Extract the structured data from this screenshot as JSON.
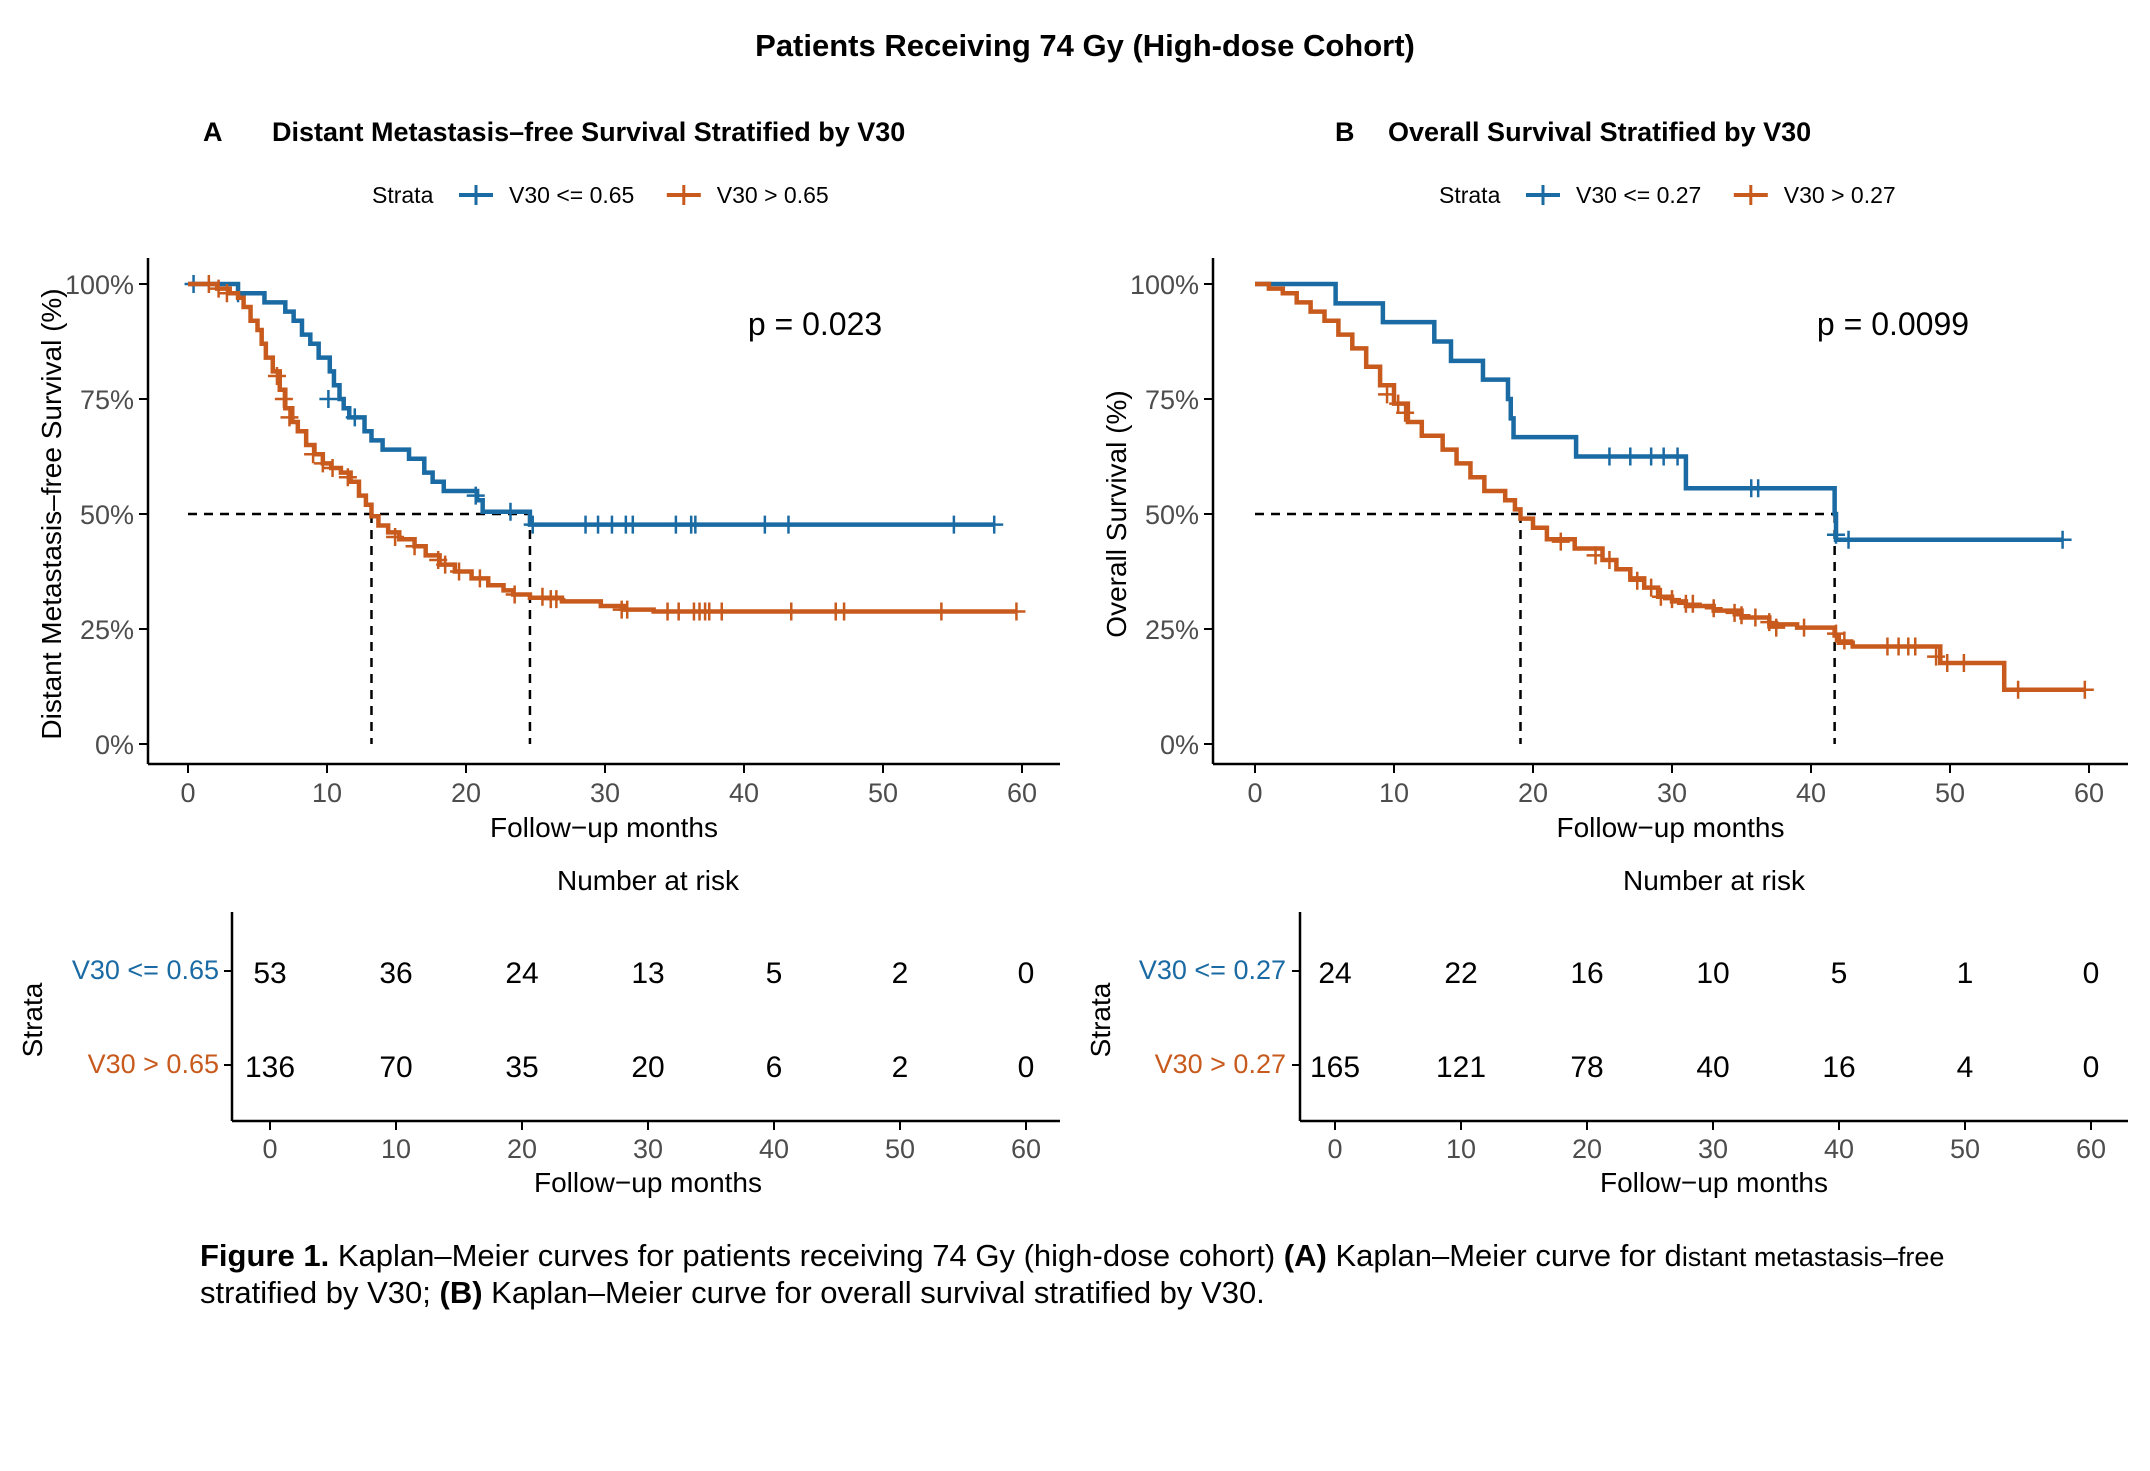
{
  "figure_title": "Patients Receiving 74 Gy (High-dose Cohort)",
  "colors": {
    "group1": "#1a6aa3",
    "group2": "#c75a1c",
    "axis": "#000000",
    "tick_label": "#4d4d4d"
  },
  "chart_data": [
    {
      "type": "line",
      "panel_letter": "A",
      "title": "Distant Metastasis–free Survival Stratified by V30",
      "legend_title": "Strata",
      "legend_position": "top",
      "xlabel": "Follow−up months",
      "ylabel": "Distant Metastasis–free Survival (%)",
      "xlim": [
        0,
        60
      ],
      "ylim": [
        0,
        100
      ],
      "x_ticks": [
        "0",
        "10",
        "20",
        "30",
        "40",
        "50",
        "60"
      ],
      "y_ticks": [
        "0%",
        "25%",
        "50%",
        "75%",
        "100%"
      ],
      "pvalue": "p = 0.023",
      "median_survival": [
        24.6,
        13.2
      ],
      "series": [
        {
          "name": "V30 <= 0.65",
          "step_points": [
            [
              0,
              100
            ],
            [
              3.6,
              98
            ],
            [
              5.5,
              96
            ],
            [
              7,
              94
            ],
            [
              7.6,
              92
            ],
            [
              8.2,
              89
            ],
            [
              8.8,
              87
            ],
            [
              9.4,
              84
            ],
            [
              10.2,
              81
            ],
            [
              10.5,
              78
            ],
            [
              10.9,
              75
            ],
            [
              11.2,
              73
            ],
            [
              11.6,
              71
            ],
            [
              12.7,
              68
            ],
            [
              13.2,
              66
            ],
            [
              14,
              64
            ],
            [
              15.9,
              62
            ],
            [
              17,
              59
            ],
            [
              17.6,
              57
            ],
            [
              18.4,
              55
            ],
            [
              20.8,
              53
            ],
            [
              21.2,
              50.5
            ],
            [
              24.6,
              47.7
            ],
            [
              58,
              47.7
            ]
          ],
          "censors": [
            [
              0.4,
              100
            ],
            [
              3.6,
              98
            ],
            [
              10.1,
              75
            ],
            [
              12,
              71
            ],
            [
              20.7,
              54
            ],
            [
              23.2,
              50.5
            ],
            [
              24.8,
              47.7
            ],
            [
              28.6,
              47.7
            ],
            [
              29.5,
              47.7
            ],
            [
              30.5,
              47.7
            ],
            [
              31.5,
              47.7
            ],
            [
              32.0,
              47.7
            ],
            [
              35.1,
              47.7
            ],
            [
              36.2,
              47.7
            ],
            [
              36.5,
              47.7
            ],
            [
              41.5,
              47.7
            ],
            [
              43.2,
              47.7
            ],
            [
              55.1,
              47.7
            ],
            [
              58,
              47.7
            ]
          ]
        },
        {
          "name": "V30 > 0.65",
          "step_points": [
            [
              0,
              100
            ],
            [
              2.1,
              99
            ],
            [
              3,
              98
            ],
            [
              3.6,
              97
            ],
            [
              4,
              95
            ],
            [
              4.5,
              92
            ],
            [
              5,
              90
            ],
            [
              5.3,
              87
            ],
            [
              5.6,
              84
            ],
            [
              6.1,
              81
            ],
            [
              6.6,
              77
            ],
            [
              7,
              73
            ],
            [
              7.5,
              70
            ],
            [
              7.9,
              68
            ],
            [
              8.5,
              65
            ],
            [
              9.1,
              63
            ],
            [
              9.7,
              61
            ],
            [
              10.3,
              60
            ],
            [
              11,
              59
            ],
            [
              11.7,
              57
            ],
            [
              12.3,
              54
            ],
            [
              12.8,
              52
            ],
            [
              13.2,
              49.5
            ],
            [
              13.7,
              47.5
            ],
            [
              14.4,
              46
            ],
            [
              15.2,
              44.5
            ],
            [
              16.3,
              43
            ],
            [
              17.1,
              41
            ],
            [
              18.1,
              39
            ],
            [
              19.2,
              37.5
            ],
            [
              20.4,
              36
            ],
            [
              21.6,
              34.5
            ],
            [
              22.7,
              33.4
            ],
            [
              23.4,
              32.5
            ],
            [
              24.6,
              31.8
            ],
            [
              26.9,
              31
            ],
            [
              29.7,
              30
            ],
            [
              31.4,
              29.2
            ],
            [
              33.5,
              28.8
            ],
            [
              59.6,
              28.8
            ]
          ],
          "censors": [
            [
              1.5,
              100
            ],
            [
              2.2,
              99
            ],
            [
              2.8,
              98
            ],
            [
              6.4,
              80
            ],
            [
              6.9,
              75
            ],
            [
              7.3,
              71
            ],
            [
              9,
              63
            ],
            [
              9.7,
              61
            ],
            [
              10.4,
              60
            ],
            [
              11.5,
              58
            ],
            [
              14.9,
              45
            ],
            [
              16.3,
              43
            ],
            [
              18,
              40
            ],
            [
              18.5,
              39
            ],
            [
              19.5,
              37.5
            ],
            [
              21,
              36
            ],
            [
              23.5,
              32.5
            ],
            [
              25.5,
              32
            ],
            [
              26.1,
              31.5
            ],
            [
              26.5,
              31.5
            ],
            [
              31.2,
              29.2
            ],
            [
              31.6,
              29.2
            ],
            [
              34.5,
              28.8
            ],
            [
              35.3,
              28.8
            ],
            [
              36.4,
              28.8
            ],
            [
              36.8,
              28.8
            ],
            [
              37.2,
              28.8
            ],
            [
              37.5,
              28.8
            ],
            [
              38.4,
              28.8
            ],
            [
              43.4,
              28.8
            ],
            [
              46.6,
              28.8
            ],
            [
              47.2,
              28.8
            ],
            [
              54.2,
              28.8
            ],
            [
              59.6,
              28.8
            ]
          ]
        }
      ],
      "risk_table": {
        "title": "Number at risk",
        "ylabel": "Strata",
        "xlabel": "Follow−up months",
        "times": [
          "0",
          "10",
          "20",
          "30",
          "40",
          "50",
          "60"
        ],
        "rows": [
          {
            "name": "V30 <= 0.65",
            "values": [
              "53",
              "36",
              "24",
              "13",
              "5",
              "2",
              "0"
            ]
          },
          {
            "name": "V30 > 0.65",
            "values": [
              "136",
              "70",
              "35",
              "20",
              "6",
              "2",
              "0"
            ]
          }
        ]
      }
    },
    {
      "type": "line",
      "panel_letter": "B",
      "title": "Overall Survival Stratified by V30",
      "legend_title": "Strata",
      "legend_position": "top",
      "xlabel": "Follow−up months",
      "ylabel": "Overall Survival (%)",
      "xlim": [
        0,
        60
      ],
      "ylim": [
        0,
        100
      ],
      "x_ticks": [
        "0",
        "10",
        "20",
        "30",
        "40",
        "50",
        "60"
      ],
      "y_ticks": [
        "0%",
        "25%",
        "50%",
        "75%",
        "100%"
      ],
      "pvalue": "p = 0.0099",
      "median_survival": [
        41.7,
        19.1
      ],
      "series": [
        {
          "name": "V30 <= 0.27",
          "step_points": [
            [
              0,
              100
            ],
            [
              5.8,
              95.8
            ],
            [
              9.2,
              91.7
            ],
            [
              12.9,
              87.5
            ],
            [
              14.1,
              83.3
            ],
            [
              16.4,
              79.2
            ],
            [
              18.2,
              75
            ],
            [
              18.4,
              70.8
            ],
            [
              18.6,
              66.7
            ],
            [
              23.1,
              62.5
            ],
            [
              31,
              55.6
            ],
            [
              41.7,
              50
            ],
            [
              41.8,
              44.4
            ],
            [
              58.1,
              44.4
            ]
          ],
          "censors": [
            [
              25.5,
              62.5
            ],
            [
              27,
              62.5
            ],
            [
              28.5,
              62.5
            ],
            [
              29.4,
              62.5
            ],
            [
              30.4,
              62.5
            ],
            [
              35.7,
              55.6
            ],
            [
              36.2,
              55.6
            ],
            [
              41.8,
              45.5
            ],
            [
              42.7,
              44.4
            ],
            [
              58.1,
              44.4
            ]
          ]
        },
        {
          "name": "V30 > 0.27",
          "step_points": [
            [
              0,
              100
            ],
            [
              1,
              99
            ],
            [
              2,
              98
            ],
            [
              3,
              96
            ],
            [
              4,
              94
            ],
            [
              5,
              92
            ],
            [
              6,
              89
            ],
            [
              7,
              86
            ],
            [
              8,
              82
            ],
            [
              9,
              78
            ],
            [
              10,
              74
            ],
            [
              11,
              70
            ],
            [
              12,
              67
            ],
            [
              13.5,
              64
            ],
            [
              14.5,
              61
            ],
            [
              15.5,
              58
            ],
            [
              16.5,
              55
            ],
            [
              18,
              53
            ],
            [
              18.7,
              51
            ],
            [
              19.1,
              49
            ],
            [
              20,
              47
            ],
            [
              21,
              44.5
            ],
            [
              23,
              42.5
            ],
            [
              25,
              40
            ],
            [
              26,
              38
            ],
            [
              27,
              36
            ],
            [
              28,
              34
            ],
            [
              29,
              32
            ],
            [
              30,
              31
            ],
            [
              31,
              30
            ],
            [
              33,
              29
            ],
            [
              35,
              27.5
            ],
            [
              37,
              26
            ],
            [
              39,
              25.3
            ],
            [
              41.7,
              23.6
            ],
            [
              42,
              22
            ],
            [
              43,
              21.2
            ],
            [
              49.3,
              17.6
            ],
            [
              53.9,
              11.8
            ],
            [
              59.7,
              11.8
            ]
          ],
          "censors": [
            [
              9.5,
              76
            ],
            [
              10.3,
              74
            ],
            [
              10.8,
              72
            ],
            [
              22,
              44
            ],
            [
              24.5,
              41
            ],
            [
              25.5,
              40
            ],
            [
              27.5,
              35.5
            ],
            [
              28.5,
              34
            ],
            [
              29.2,
              32
            ],
            [
              30,
              31.5
            ],
            [
              31,
              30.5
            ],
            [
              31.5,
              30.5
            ],
            [
              33,
              29.5
            ],
            [
              34.5,
              28.5
            ],
            [
              35,
              28
            ],
            [
              36,
              27.5
            ],
            [
              37,
              26.5
            ],
            [
              37.5,
              25.3
            ],
            [
              39.5,
              25.3
            ],
            [
              41.8,
              24
            ],
            [
              42.4,
              22.5
            ],
            [
              45.5,
              21.2
            ],
            [
              46.3,
              21.2
            ],
            [
              47,
              21.2
            ],
            [
              47.5,
              21.2
            ],
            [
              49,
              19
            ],
            [
              49.8,
              17.6
            ],
            [
              51,
              17.6
            ],
            [
              54.9,
              11.8
            ],
            [
              59.7,
              11.8
            ]
          ]
        }
      ],
      "risk_table": {
        "title": "Number at risk",
        "ylabel": "Strata",
        "xlabel": "Follow−up months",
        "times": [
          "0",
          "10",
          "20",
          "30",
          "40",
          "50",
          "60"
        ],
        "rows": [
          {
            "name": "V30 <= 0.27",
            "values": [
              "24",
              "22",
              "16",
              "10",
              "5",
              "1",
              "0"
            ]
          },
          {
            "name": "V30 > 0.27",
            "values": [
              "165",
              "121",
              "78",
              "40",
              "16",
              "4",
              "0"
            ]
          }
        ]
      }
    }
  ],
  "caption": {
    "label": "Figure 1.",
    "text1": " Kaplan–Meier curves for patients receiving 74 Gy (high-dose cohort) ",
    "part_a": "(A)",
    "text2": " Kaplan–Meier curve for d",
    "text2_small": "istant metastasis–free",
    "text3": " stratified by V30; ",
    "part_b": "(B)",
    "text4": " Kaplan–Meier curve for overall survival stratified by V30."
  }
}
